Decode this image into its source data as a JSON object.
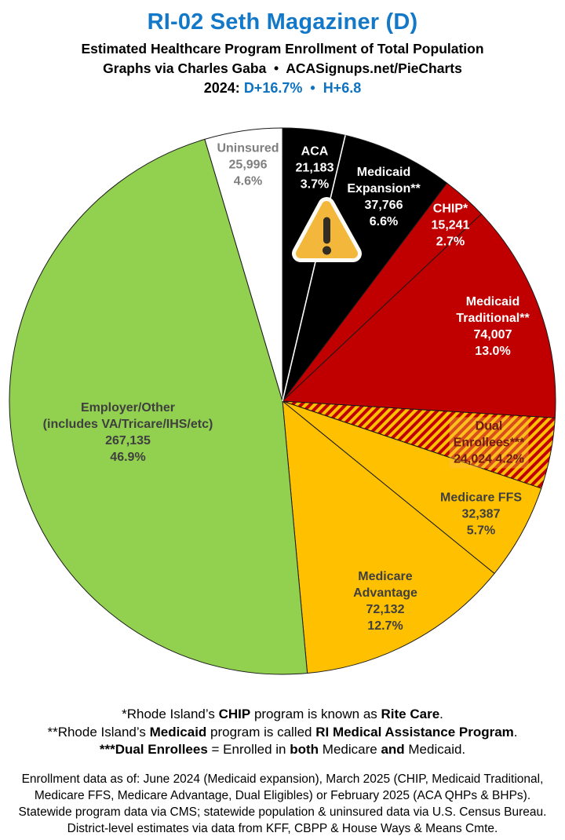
{
  "colors": {
    "title": "#1478C8",
    "accent": "#0D72C2",
    "black_slice": "#000000",
    "red_slice": "#C00000",
    "gold_slice": "#FFC000",
    "green_slice": "#92D050",
    "uninsured_slice": "#FFFFFF",
    "uninsured_text": "#7F7F7F",
    "dark_text": "#3F3F3F",
    "dual_text": "#701C12",
    "slice_outline": "#1A1A1A",
    "warning_fill": "#F3B73C",
    "warning_border": "#FCFBF6",
    "warning_glyph": "#332E24"
  },
  "header": {
    "title": "RI-02 Seth Magaziner (D)",
    "subtitle1": "Estimated Healthcare Program Enrollment of Total Population",
    "subtitle2": "Graphs via Charles Gaba  •  ACASignups.net/PieCharts",
    "lean_segments": [
      {
        "t": "2024: "
      },
      {
        "t": "D+16.7%",
        "c": "accent"
      },
      {
        "t": "  •  ",
        "c": "accent"
      },
      {
        "t": "H+6.8",
        "c": "accent"
      }
    ]
  },
  "chart_data": {
    "type": "pie",
    "title": "RI-02 Seth Magaziner (D) — Estimated Healthcare Program Enrollment of Total Population",
    "start_angle_deg": 0,
    "direction": "clockwise",
    "legend": "none (labels drawn on slices)",
    "hatch_colors": {
      "base": "#FFC000",
      "stripe": "#C00000"
    },
    "slices": [
      {
        "key": "aca",
        "label": "ACA",
        "value": 21183,
        "pct": 3.7,
        "value_display": "21,183",
        "pct_display": "3.7%",
        "color": "#000000",
        "text_color": "#FFFFFF"
      },
      {
        "key": "medicaid-expansion",
        "label": "Medicaid\nExpansion**",
        "value": 37766,
        "pct": 6.6,
        "value_display": "37,766",
        "pct_display": "6.6%",
        "color": "#000000",
        "text_color": "#FFFFFF"
      },
      {
        "key": "chip",
        "label": "CHIP*",
        "value": 15241,
        "pct": 2.7,
        "value_display": "15,241",
        "pct_display": "2.7%",
        "color": "#C00000",
        "text_color": "#FFFFFF"
      },
      {
        "key": "medicaid-traditional",
        "label": "Medicaid\nTraditional**",
        "value": 74007,
        "pct": 13.0,
        "value_display": "74,007",
        "pct_display": "13.0%",
        "color": "#C00000",
        "text_color": "#FFFFFF"
      },
      {
        "key": "dual-enrollees",
        "label": "Dual Enrollees***",
        "value": 24024,
        "pct": 4.2,
        "value_display": "24,024 4.2%",
        "pct_display": "",
        "color": "hatch",
        "text_color": "#701C12",
        "label_bg": "rgba(255,190,70,0.40)"
      },
      {
        "key": "medicare-ffs",
        "label": "Medicare FFS",
        "value": 32387,
        "pct": 5.7,
        "value_display": "32,387",
        "pct_display": "5.7%",
        "color": "#FFC000",
        "text_color": "#3F3F3F"
      },
      {
        "key": "medicare-advantage",
        "label": "Medicare\nAdvantage",
        "value": 72132,
        "pct": 12.7,
        "value_display": "72,132",
        "pct_display": "12.7%",
        "color": "#FFC000",
        "text_color": "#3F3F3F"
      },
      {
        "key": "employer-other",
        "label": "Employer/Other\n(includes VA/Tricare/IHS/etc)",
        "value": 267135,
        "pct": 46.9,
        "value_display": "267,135",
        "pct_display": "46.9%",
        "color": "#92D050",
        "text_color": "#3F3F3F"
      },
      {
        "key": "uninsured",
        "label": "Uninsured",
        "value": 25996,
        "pct": 4.6,
        "value_display": "25,996",
        "pct_display": "4.6%",
        "color": "#FFFFFF",
        "text_color": "#7F7F7F"
      }
    ]
  },
  "icons": {
    "warning_triangle": "warning-triangle-icon"
  },
  "footnotes": [
    [
      {
        "t": "*Rhode Island’s "
      },
      {
        "t": "CHIP",
        "b": 1
      },
      {
        "t": " program is known as "
      },
      {
        "t": "Rite Care",
        "b": 1
      },
      {
        "t": "."
      }
    ],
    [
      {
        "t": "**Rhode Island’s "
      },
      {
        "t": "Medicaid",
        "b": 1
      },
      {
        "t": " program is called "
      },
      {
        "t": "RI Medical Assistance Program",
        "b": 1
      },
      {
        "t": "."
      }
    ],
    [
      {
        "t": "***Dual Enrollees",
        "b": 1
      },
      {
        "t": " = Enrolled in "
      },
      {
        "t": "both",
        "b": 1
      },
      {
        "t": " Medicare "
      },
      {
        "t": "and",
        "b": 1
      },
      {
        "t": " Medicaid."
      }
    ]
  ],
  "source": {
    "lines": [
      "Enrollment data as of: June 2024 (Medicaid expansion), March 2025 (CHIP, Medicaid Traditional,",
      "Medicare FFS, Medicare Advantage, Dual Eligibles) or February 2025 (ACA QHPs & BHPs).",
      "Statewide program data via CMS; statewide population & uninsured data via U.S. Census Bureau.",
      "District-level estimates via data from KFF, CBPP & House Ways & Means Cmte."
    ]
  }
}
